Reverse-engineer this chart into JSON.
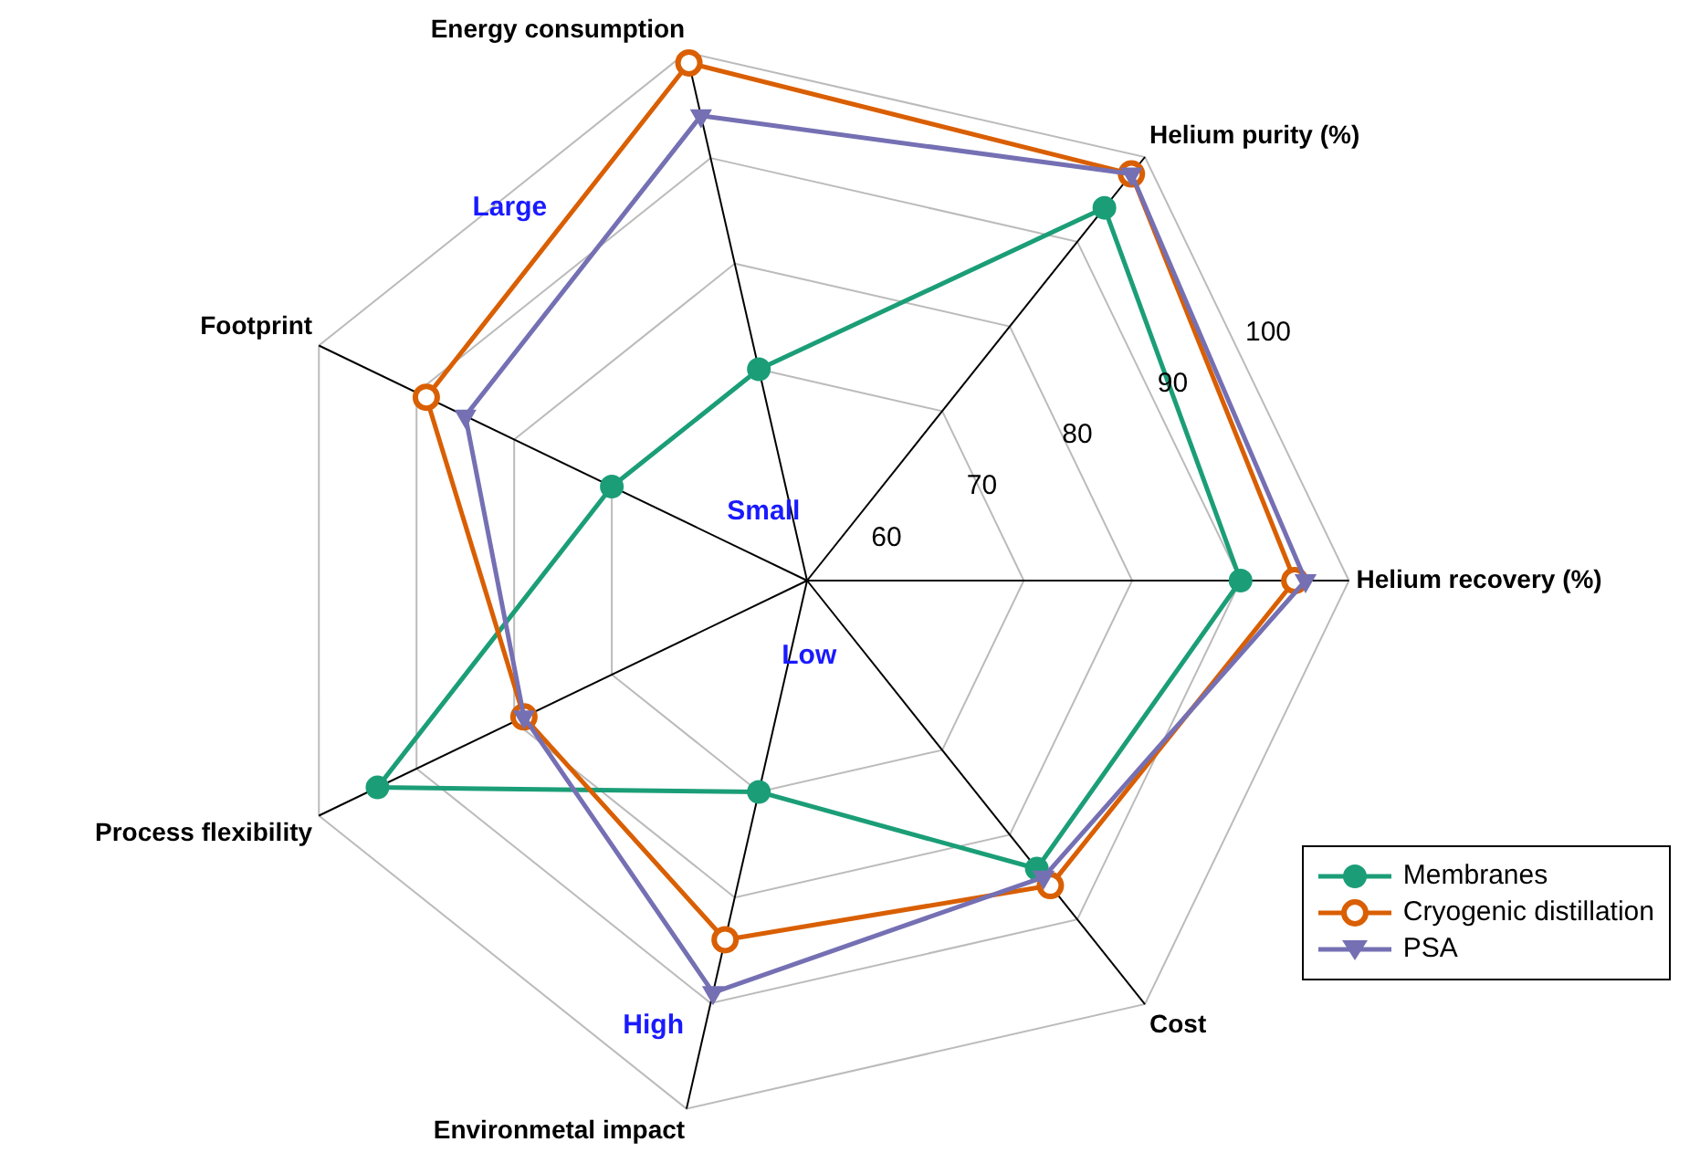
{
  "chart_data": {
    "type": "radar",
    "categories": [
      "Energy consumption",
      "Helium purity (%)",
      "Helium recovery (%)",
      "Cost",
      "Environmetal impact",
      "Process flexibility",
      "Footprint"
    ],
    "series": [
      {
        "name": "Membranes",
        "color": "#1b9e77",
        "marker": "circle",
        "values": [
          70,
          94,
          90,
          84,
          70,
          94,
          70
        ]
      },
      {
        "name": "Cryogenic distillation",
        "color": "#d95f02",
        "marker": "circle",
        "values": [
          99,
          98,
          95,
          86,
          84,
          79,
          89
        ]
      },
      {
        "name": "PSA",
        "color": "#7570b3",
        "marker": "triangle",
        "values": [
          94,
          98,
          96,
          85,
          89,
          79,
          85
        ]
      }
    ],
    "ylim": [
      50,
      100
    ],
    "yticks": [
      60,
      70,
      80,
      90,
      100
    ],
    "grid": true,
    "legend": "bottom right",
    "annotations": [
      "Large",
      "Small",
      "Low",
      "High"
    ]
  }
}
